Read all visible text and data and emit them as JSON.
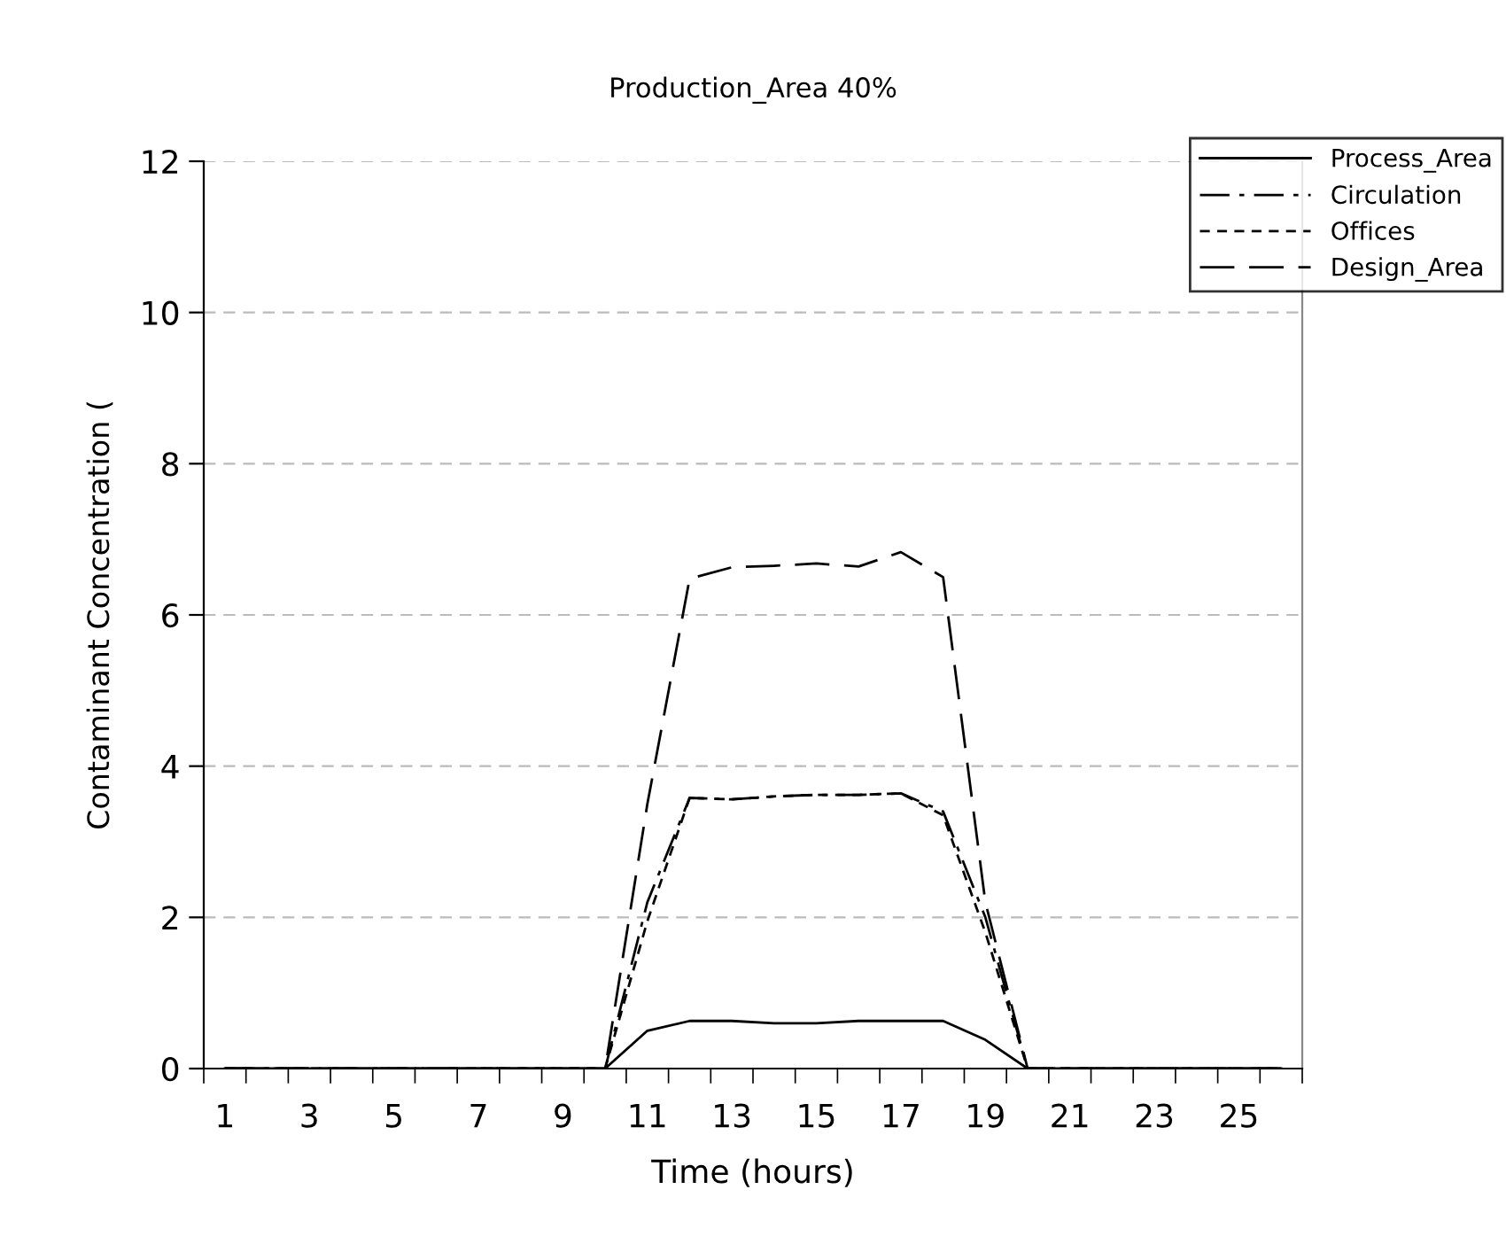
{
  "chart_data": {
    "type": "line",
    "title": "Production_Area 40%",
    "xlabel": "Time (hours)",
    "ylabel": "Contaminant Concentration (",
    "categories": [
      "1",
      null,
      "3",
      null,
      "5",
      null,
      "7",
      null,
      "9",
      null,
      "11",
      null,
      "13",
      null,
      "15",
      null,
      "17",
      null,
      "19",
      null,
      "21",
      null,
      "23",
      null,
      "25",
      null
    ],
    "ylim": [
      0,
      12
    ],
    "yticks": [
      0,
      2,
      4,
      6,
      8,
      10,
      12
    ],
    "grid": "y",
    "legend": "top right",
    "marker": "none",
    "series": [
      {
        "name": "Process_Area",
        "color": "#000000",
        "line_style": "solid",
        "values": [
          0,
          0,
          0,
          0,
          0,
          0,
          0,
          0,
          0,
          0,
          0.5,
          0.63,
          0.63,
          0.6,
          0.6,
          0.63,
          0.63,
          0.63,
          0.38,
          0,
          0,
          0,
          0,
          0,
          0,
          0
        ]
      },
      {
        "name": "Circulation",
        "color": "#000000",
        "line_style": "dashdot",
        "values": [
          0,
          0,
          0,
          0,
          0,
          0,
          0,
          0,
          0,
          0,
          2.2,
          3.58,
          3.56,
          3.6,
          3.62,
          3.62,
          3.64,
          3.4,
          2.0,
          0,
          0,
          0,
          0,
          0,
          0,
          0
        ]
      },
      {
        "name": "Offices",
        "color": "#000000",
        "line_style": "dashed",
        "values": [
          0,
          0,
          0,
          0,
          0,
          0,
          0,
          0,
          0,
          0,
          1.95,
          3.58,
          3.56,
          3.6,
          3.62,
          3.62,
          3.64,
          3.35,
          1.8,
          0,
          0,
          0,
          0,
          0,
          0,
          0
        ]
      },
      {
        "name": "Design_Area",
        "color": "#000000",
        "line_style": "longdash",
        "values": [
          0,
          0,
          0,
          0,
          0,
          0,
          0,
          0,
          0,
          0,
          3.5,
          6.48,
          6.63,
          6.65,
          6.68,
          6.64,
          6.83,
          6.5,
          2.2,
          0,
          0,
          0,
          0,
          0,
          0,
          0
        ]
      }
    ]
  }
}
